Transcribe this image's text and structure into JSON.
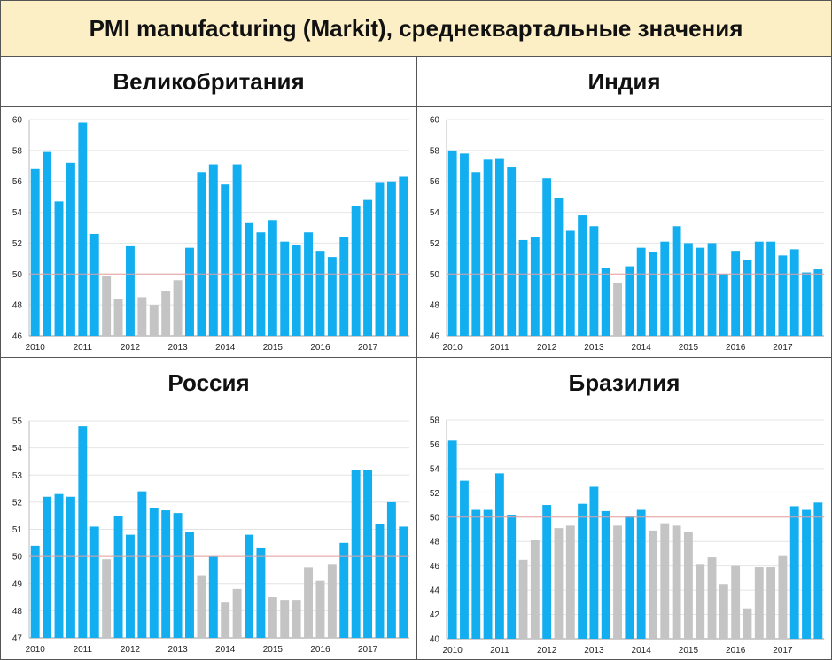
{
  "title": "PMI manufacturing (Markit), среднеквартальные значения",
  "colors": {
    "above": "#12aef0",
    "below": "#c4c4c4",
    "threshold_line": "#e8a0a0",
    "grid": "#e4e4e4",
    "header_bg": "#fdefc5"
  },
  "chart_data": [
    {
      "type": "bar",
      "title": "Великобритания",
      "threshold": 50,
      "ylim": [
        46,
        60
      ],
      "yticks": [
        46,
        48,
        50,
        52,
        54,
        56,
        58,
        60
      ],
      "year_labels": [
        "2010",
        "2011",
        "2012",
        "2013",
        "2014",
        "2015",
        "2016",
        "2017"
      ],
      "values": [
        56.8,
        57.9,
        54.7,
        57.2,
        59.8,
        52.6,
        49.9,
        48.4,
        51.8,
        48.5,
        48.0,
        48.9,
        49.6,
        51.7,
        56.6,
        57.1,
        55.8,
        57.1,
        53.3,
        52.7,
        53.5,
        52.1,
        51.9,
        52.7,
        51.5,
        51.1,
        52.4,
        54.4,
        54.8,
        55.9,
        56.0,
        56.3
      ]
    },
    {
      "type": "bar",
      "title": "Индия",
      "threshold": 50,
      "ylim": [
        46,
        60
      ],
      "yticks": [
        46,
        48,
        50,
        52,
        54,
        56,
        58,
        60
      ],
      "year_labels": [
        "2010",
        "2011",
        "2012",
        "2013",
        "2014",
        "2015",
        "2016",
        "2017"
      ],
      "values": [
        58.0,
        57.8,
        56.6,
        57.4,
        57.5,
        56.9,
        52.2,
        52.4,
        56.2,
        54.9,
        52.8,
        53.8,
        53.1,
        50.4,
        49.4,
        50.5,
        51.7,
        51.4,
        52.1,
        53.1,
        52.0,
        51.7,
        52.0,
        50.0,
        51.5,
        50.9,
        52.1,
        52.1,
        51.2,
        51.6,
        50.1,
        50.3
      ]
    },
    {
      "type": "bar",
      "title": "Россия",
      "threshold": 50,
      "ylim": [
        47,
        55
      ],
      "yticks": [
        47,
        48,
        49,
        50,
        51,
        52,
        53,
        54,
        55
      ],
      "year_labels": [
        "2010",
        "2011",
        "2012",
        "2013",
        "2014",
        "2015",
        "2016",
        "2017"
      ],
      "values": [
        50.4,
        52.2,
        52.3,
        52.2,
        54.8,
        51.1,
        49.9,
        51.5,
        50.8,
        52.4,
        51.8,
        51.7,
        51.6,
        50.9,
        49.3,
        50.0,
        48.3,
        48.8,
        50.8,
        50.3,
        48.5,
        48.4,
        48.4,
        49.6,
        49.1,
        49.7,
        50.5,
        53.2,
        53.2,
        51.2,
        52.0,
        51.1
      ]
    },
    {
      "type": "bar",
      "title": "Бразилия",
      "threshold": 50,
      "ylim": [
        40,
        58
      ],
      "yticks": [
        40,
        42,
        44,
        46,
        48,
        50,
        52,
        54,
        56,
        58
      ],
      "year_labels": [
        "2010",
        "2011",
        "2012",
        "2013",
        "2014",
        "2015",
        "2016",
        "2017"
      ],
      "values": [
        56.3,
        53.0,
        50.6,
        50.6,
        53.6,
        50.2,
        46.5,
        48.1,
        51.0,
        49.1,
        49.3,
        51.1,
        52.5,
        50.5,
        49.3,
        50.1,
        50.6,
        48.9,
        49.5,
        49.3,
        48.8,
        46.1,
        46.7,
        44.5,
        46.0,
        42.5,
        45.9,
        45.9,
        46.8,
        50.9,
        50.6,
        51.2
      ]
    }
  ]
}
